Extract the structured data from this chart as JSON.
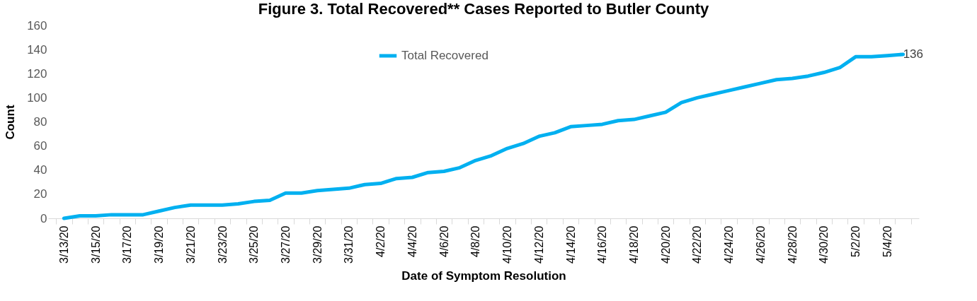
{
  "chart_data": {
    "type": "line",
    "title": "Figure 3. Total Recovered** Cases Reported to Butler County",
    "xlabel": "Date of Symptom Resolution",
    "ylabel": "Count",
    "categories": [
      "3/13/20",
      null,
      "3/15/20",
      null,
      "3/17/20",
      null,
      "3/19/20",
      null,
      "3/21/20",
      null,
      "3/23/20",
      null,
      "3/25/20",
      null,
      "3/27/20",
      null,
      "3/29/20",
      null,
      "3/31/20",
      null,
      "4/2/20",
      null,
      "4/4/20",
      null,
      "4/6/20",
      null,
      "4/8/20",
      null,
      "4/10/20",
      null,
      "4/12/20",
      null,
      "4/14/20",
      null,
      "4/16/20",
      null,
      "4/18/20",
      null,
      "4/20/20",
      null,
      "4/22/20",
      null,
      "4/24/20",
      null,
      "4/26/20",
      null,
      "4/28/20",
      null,
      "4/30/20",
      null,
      "5/2/20",
      null,
      "5/4/20",
      null
    ],
    "series": [
      {
        "name": "Total Recovered",
        "color": "#00b0f0",
        "values": [
          0,
          2,
          2,
          3,
          3,
          3,
          6,
          9,
          11,
          11,
          11,
          12,
          14,
          15,
          21,
          21,
          23,
          24,
          25,
          28,
          29,
          33,
          34,
          38,
          39,
          42,
          48,
          52,
          58,
          62,
          68,
          71,
          76,
          77,
          78,
          81,
          82,
          85,
          88,
          96,
          100,
          103,
          106,
          109,
          112,
          115,
          116,
          118,
          121,
          125,
          134,
          134,
          135,
          136
        ],
        "value_labels": [
          null,
          null,
          null,
          null,
          null,
          null,
          null,
          null,
          null,
          null,
          null,
          null,
          null,
          null,
          null,
          null,
          null,
          null,
          null,
          null,
          null,
          null,
          null,
          null,
          null,
          null,
          null,
          null,
          null,
          null,
          null,
          null,
          null,
          null,
          null,
          null,
          null,
          null,
          null,
          null,
          null,
          null,
          null,
          null,
          null,
          null,
          null,
          null,
          null,
          null,
          null,
          null,
          null,
          "136"
        ]
      }
    ],
    "ylim": [
      0,
      160
    ],
    "yticks": [
      0,
      20,
      40,
      60,
      80,
      100,
      120,
      140,
      160
    ],
    "grid": false,
    "legend": "top",
    "marker": "none",
    "line_style": "solid"
  }
}
